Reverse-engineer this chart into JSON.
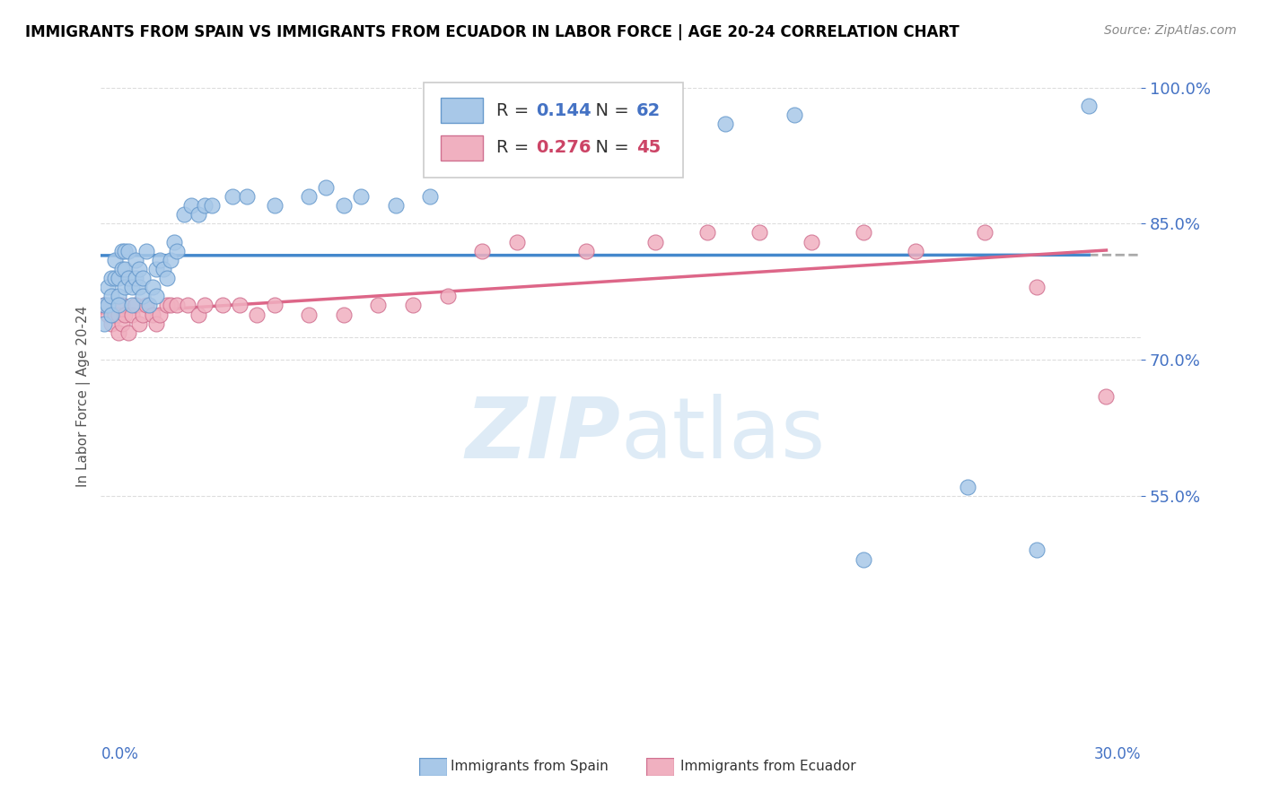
{
  "title": "IMMIGRANTS FROM SPAIN VS IMMIGRANTS FROM ECUADOR IN LABOR FORCE | AGE 20-24 CORRELATION CHART",
  "source": "Source: ZipAtlas.com",
  "ylabel": "In Labor Force | Age 20-24",
  "xmin": 0.0,
  "xmax": 0.3,
  "ymin": 0.3,
  "ymax": 1.02,
  "yticks": [
    0.55,
    0.7,
    0.85,
    1.0
  ],
  "ytick_labels": [
    "55.0%",
    "70.0%",
    "85.0%",
    "100.0%"
  ],
  "r_spain": 0.144,
  "n_spain": 62,
  "r_ecuador": 0.276,
  "n_ecuador": 45,
  "color_spain_fill": "#A8C8E8",
  "color_spain_edge": "#6699CC",
  "color_ecuador_fill": "#F0B0C0",
  "color_ecuador_edge": "#D07090",
  "color_spain_line": "#4488CC",
  "color_ecuador_line": "#DD6688",
  "color_spain_text": "#4472C4",
  "color_ecuador_text": "#CC4466",
  "watermark_color": "#C8DFF0",
  "spain_scatter_x": [
    0.001,
    0.001,
    0.002,
    0.002,
    0.003,
    0.003,
    0.003,
    0.004,
    0.004,
    0.005,
    0.005,
    0.005,
    0.006,
    0.006,
    0.007,
    0.007,
    0.007,
    0.008,
    0.008,
    0.009,
    0.009,
    0.01,
    0.01,
    0.011,
    0.011,
    0.012,
    0.012,
    0.013,
    0.014,
    0.015,
    0.016,
    0.016,
    0.017,
    0.018,
    0.019,
    0.02,
    0.021,
    0.022,
    0.024,
    0.026,
    0.028,
    0.03,
    0.032,
    0.038,
    0.042,
    0.05,
    0.06,
    0.065,
    0.07,
    0.075,
    0.085,
    0.095,
    0.11,
    0.13,
    0.14,
    0.16,
    0.18,
    0.2,
    0.22,
    0.25,
    0.27,
    0.285
  ],
  "spain_scatter_y": [
    0.76,
    0.74,
    0.78,
    0.76,
    0.79,
    0.77,
    0.75,
    0.81,
    0.79,
    0.77,
    0.76,
    0.79,
    0.82,
    0.8,
    0.8,
    0.78,
    0.82,
    0.79,
    0.82,
    0.76,
    0.78,
    0.79,
    0.81,
    0.8,
    0.78,
    0.77,
    0.79,
    0.82,
    0.76,
    0.78,
    0.77,
    0.8,
    0.81,
    0.8,
    0.79,
    0.81,
    0.83,
    0.82,
    0.86,
    0.87,
    0.86,
    0.87,
    0.87,
    0.88,
    0.88,
    0.87,
    0.88,
    0.89,
    0.87,
    0.88,
    0.87,
    0.88,
    0.97,
    0.96,
    0.98,
    0.98,
    0.96,
    0.97,
    0.48,
    0.56,
    0.49,
    0.98
  ],
  "ecuador_scatter_x": [
    0.001,
    0.002,
    0.003,
    0.004,
    0.005,
    0.005,
    0.006,
    0.006,
    0.007,
    0.008,
    0.009,
    0.01,
    0.011,
    0.012,
    0.013,
    0.015,
    0.016,
    0.017,
    0.019,
    0.02,
    0.022,
    0.025,
    0.028,
    0.03,
    0.035,
    0.04,
    0.045,
    0.05,
    0.06,
    0.07,
    0.08,
    0.09,
    0.1,
    0.11,
    0.12,
    0.14,
    0.16,
    0.175,
    0.19,
    0.205,
    0.22,
    0.235,
    0.255,
    0.27,
    0.29
  ],
  "ecuador_scatter_y": [
    0.76,
    0.75,
    0.74,
    0.75,
    0.73,
    0.75,
    0.76,
    0.74,
    0.75,
    0.73,
    0.75,
    0.76,
    0.74,
    0.75,
    0.76,
    0.75,
    0.74,
    0.75,
    0.76,
    0.76,
    0.76,
    0.76,
    0.75,
    0.76,
    0.76,
    0.76,
    0.75,
    0.76,
    0.75,
    0.75,
    0.76,
    0.76,
    0.77,
    0.82,
    0.83,
    0.82,
    0.83,
    0.84,
    0.84,
    0.83,
    0.84,
    0.82,
    0.84,
    0.78,
    0.66
  ]
}
